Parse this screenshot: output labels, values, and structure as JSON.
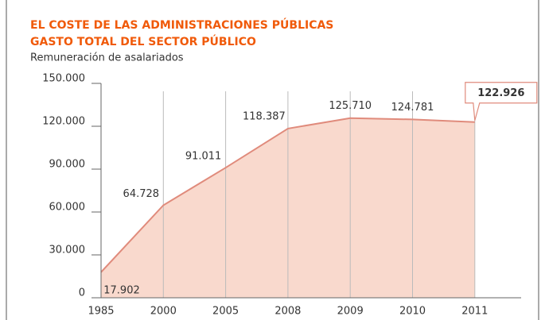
{
  "chart_data": {
    "type": "area",
    "title": "EL COSTE DE LAS ADMINISTRACIONES PÚBLICAS",
    "subtitle": "GASTO TOTAL DEL SECTOR PÚBLICO",
    "y_label": "Remuneración de asalariados",
    "categories": [
      "1985",
      "2000",
      "2005",
      "2008",
      "2009",
      "2010",
      "2011"
    ],
    "values": [
      17902,
      64728,
      91011,
      118387,
      125710,
      124781,
      122926
    ],
    "value_labels": [
      "17.902",
      "64.728",
      "91.011",
      "118.387",
      "125.710",
      "124.781",
      "122.926"
    ],
    "color": "#e08b7c",
    "fill": "#f9d9cd",
    "ylim": [
      0,
      150000
    ],
    "yticks": [
      {
        "value": 0,
        "label": "0"
      },
      {
        "value": 30000,
        "label": "30.000"
      },
      {
        "value": 60000,
        "label": "60.000"
      },
      {
        "value": 90000,
        "label": "90.000"
      },
      {
        "value": 120000,
        "label": "120.000"
      },
      {
        "value": 150000,
        "label": "150.000"
      }
    ]
  }
}
